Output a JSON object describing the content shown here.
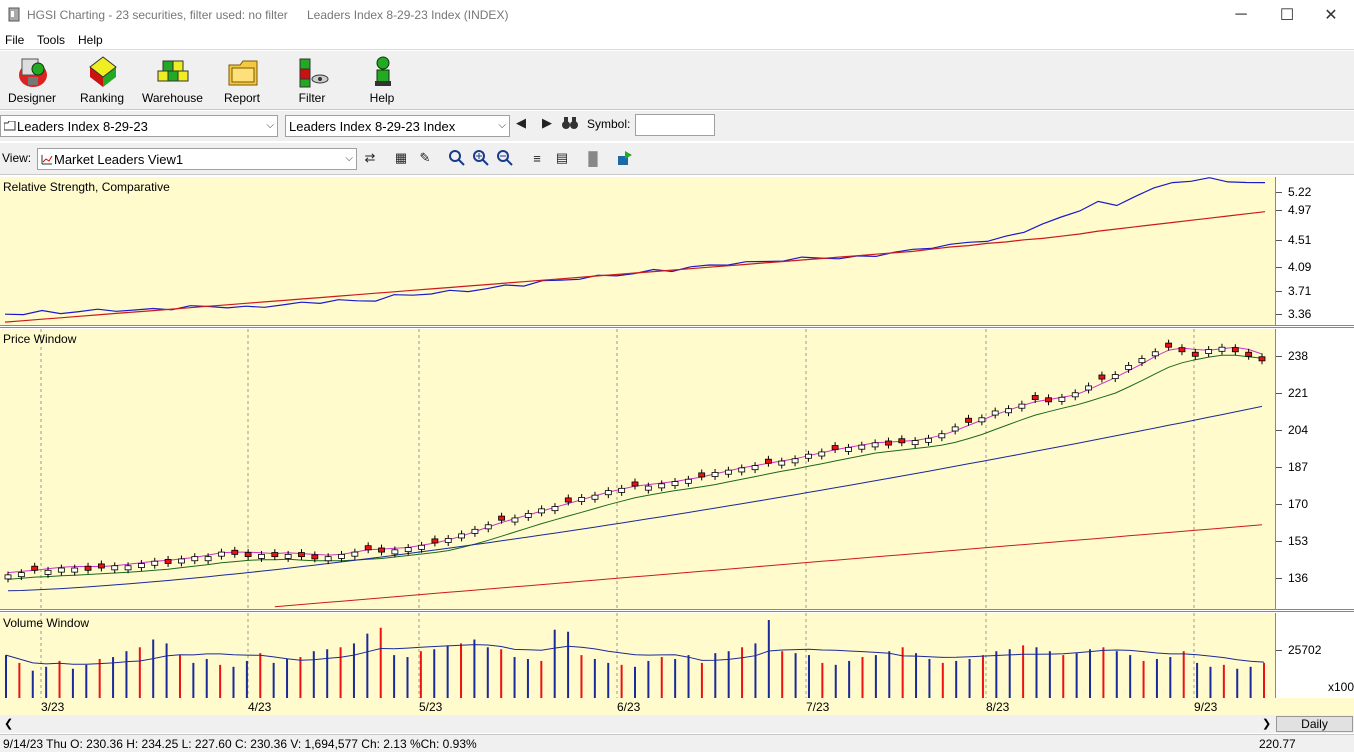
{
  "window": {
    "app_title": "HGSI Charting - 23 securities, filter used: no filter",
    "doc_title": "Leaders Index 8-29-23 Index (INDEX)",
    "min_glyph": "─",
    "max_glyph": "☐",
    "close_glyph": "✕"
  },
  "menu": [
    "File",
    "Tools",
    "Help"
  ],
  "toolbar": [
    {
      "label": "Designer",
      "icon": "designer-icon"
    },
    {
      "label": "Ranking",
      "icon": "ranking-icon"
    },
    {
      "label": "Warehouse",
      "icon": "warehouse-icon"
    },
    {
      "label": "Report",
      "icon": "report-icon"
    },
    {
      "label": "Filter",
      "icon": "filter-icon"
    },
    {
      "label": "Help",
      "icon": "help-icon"
    }
  ],
  "selectors": {
    "list_combo": "Leaders Index 8-29-23",
    "security_combo": "Leaders Index 8-29-23 Index",
    "symbol_label": "Symbol:",
    "symbol_value": ""
  },
  "view": {
    "label": "View:",
    "combo": "Market Leaders View1"
  },
  "panels": {
    "rs_title": "Relative Strength, Comparative",
    "price_title": "Price Window",
    "volume_title": "Volume Window"
  },
  "colors": {
    "panel_bg": "#fffbcc",
    "rs_line": "#1a1acc",
    "ma_red": "#cc1a1a",
    "ma_blue": "#1a2a99",
    "ma_green": "#1a6a1a",
    "ma_magenta": "#cc33cc",
    "up_candle": "#ffffff",
    "down_candle": "#ee1111",
    "volume_blue": "#1a2a99",
    "volume_red": "#ee1111"
  },
  "chart_data": [
    {
      "type": "line",
      "name": "rs",
      "ylabels": [
        "5.22",
        "4.97",
        "4.51",
        "4.09",
        "3.71",
        "3.36"
      ],
      "ylim": [
        3.3,
        5.35
      ],
      "series": [
        {
          "values": [
            3.45,
            3.46,
            3.48,
            3.47,
            3.49,
            3.5,
            3.51,
            3.5,
            3.52,
            3.53,
            3.55,
            3.56,
            3.55,
            3.54,
            3.56,
            3.58,
            3.6,
            3.62,
            3.64,
            3.63,
            3.65,
            3.7,
            3.72,
            3.74,
            3.76,
            3.78,
            3.8,
            3.84,
            3.86,
            3.9,
            3.92,
            3.95,
            3.97,
            3.99,
            4.02,
            4.05,
            4.06,
            4.1,
            4.12,
            4.15,
            4.16,
            4.18,
            4.2,
            4.22,
            4.24,
            4.22,
            4.24,
            4.27,
            4.3,
            4.34,
            4.38,
            4.4,
            4.45,
            4.47,
            4.51,
            4.6,
            4.7,
            4.78,
            4.9,
            5.0,
            4.95,
            5.1,
            5.18,
            5.28,
            5.3,
            5.32,
            5.3,
            5.27,
            5.26
          ]
        },
        {
          "values": [
            3.34,
            3.36,
            3.38,
            3.4,
            3.42,
            3.44,
            3.46,
            3.48,
            3.5,
            3.52,
            3.54,
            3.56,
            3.58,
            3.6,
            3.62,
            3.64,
            3.66,
            3.68,
            3.7,
            3.72,
            3.74,
            3.76,
            3.78,
            3.8,
            3.82,
            3.84,
            3.86,
            3.88,
            3.9,
            3.92,
            3.94,
            3.96,
            3.98,
            4.0,
            4.02,
            4.04,
            4.06,
            4.08,
            4.1,
            4.12,
            4.14,
            4.16,
            4.18,
            4.2,
            4.22,
            4.24,
            4.26,
            4.28,
            4.3,
            4.32,
            4.35,
            4.38,
            4.4,
            4.43,
            4.45,
            4.48,
            4.5,
            4.53,
            4.56,
            4.6,
            4.63,
            4.66,
            4.69,
            4.72,
            4.75,
            4.78,
            4.81,
            4.84,
            4.87
          ]
        }
      ]
    },
    {
      "type": "candlestick",
      "name": "price",
      "ylabels": [
        "238",
        "221",
        "204",
        "187",
        "170",
        "153",
        "136"
      ],
      "ylim": [
        123,
        246
      ],
      "closes": [
        138,
        139,
        140,
        140,
        141,
        141,
        140,
        141,
        142,
        142,
        143,
        144,
        143,
        145,
        146,
        146,
        148,
        147,
        146,
        147,
        146,
        147,
        146,
        145,
        146,
        147,
        148,
        149,
        148,
        149,
        150,
        151,
        152,
        154,
        156,
        158,
        160,
        162,
        163,
        165,
        167,
        168,
        170,
        172,
        173,
        175,
        176,
        177,
        177,
        178,
        179,
        180,
        181,
        183,
        184,
        185,
        186,
        187,
        188,
        189,
        191,
        192,
        193,
        194,
        195,
        196,
        195,
        196,
        197,
        198,
        200,
        203,
        205,
        207,
        210,
        211,
        213,
        215,
        214,
        216,
        218,
        221,
        224,
        226,
        230,
        233,
        236,
        238,
        236,
        234,
        237,
        238,
        236,
        234,
        232
      ]
    },
    {
      "type": "bar",
      "name": "volume",
      "ylabels": [
        "25702"
      ],
      "unit_label": "x100",
      "values": [
        22,
        18,
        14,
        16,
        19,
        15,
        17,
        20,
        21,
        24,
        26,
        30,
        28,
        22,
        18,
        20,
        17,
        16,
        19,
        23,
        18,
        20,
        21,
        24,
        25,
        26,
        28,
        33,
        36,
        22,
        21,
        24,
        25,
        27,
        28,
        30,
        26,
        25,
        21,
        20,
        19,
        35,
        34,
        22,
        20,
        18,
        17,
        16,
        19,
        21,
        20,
        22,
        18,
        23,
        24,
        26,
        28,
        40,
        24,
        23,
        22,
        18,
        17,
        19,
        21,
        22,
        24,
        26,
        23,
        20,
        18,
        19,
        20,
        22,
        24,
        25,
        27,
        26,
        24,
        22,
        23,
        25,
        26,
        24,
        22,
        19,
        20,
        21,
        24,
        18,
        16,
        17,
        15,
        16,
        18
      ]
    }
  ],
  "x_labels": [
    "3/23",
    "4/23",
    "5/23",
    "6/23",
    "7/23",
    "8/23",
    "9/23"
  ],
  "bottom": {
    "period": "Daily",
    "status": "9/14/23 Thu O: 230.36 H: 234.25 L: 227.60 C: 230.36 V: 1,694,577 Ch: 2.13 %Ch: 0.93%",
    "value": "220.77"
  }
}
